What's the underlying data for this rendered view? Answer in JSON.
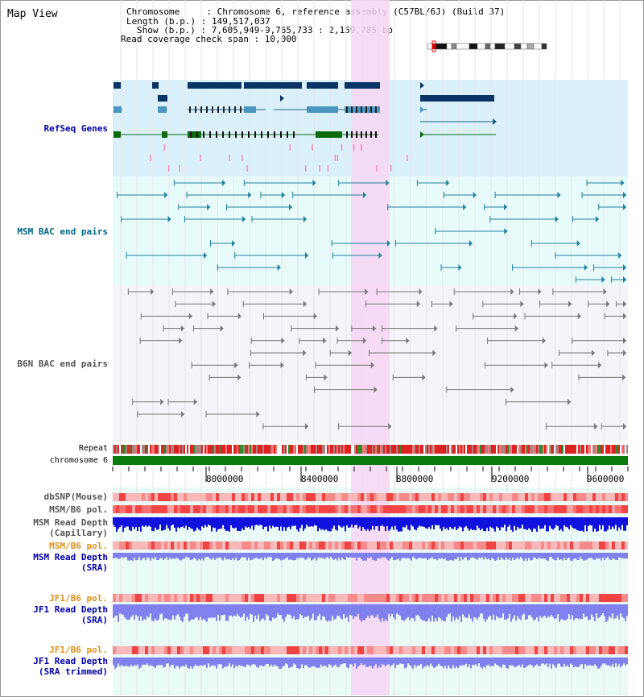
{
  "header": {
    "title": "Map View",
    "chromosome_line": "Chromosome     : Chromosome 6, reference assembly (C57BL/6J) (Build 37)",
    "length_line": "Length (b.p.) : 149,517,037",
    "show_line": "Show (b.p.) : 7,605,949-9,765,733 : 2,159,785 bp",
    "coverage_line": "Read coverage check span : 10,000"
  },
  "tracks": {
    "refseq": "RefSeq Genes",
    "msm_bac": "MSM BAC end pairs",
    "b6n_bac": "B6N BAC end pairs",
    "repeat": "Repeat",
    "chromosome": "chromosome 6",
    "dbsnp": "dbSNP(Mouse)",
    "msm_b6_pol_1": "MSM/B6 pol.",
    "msm_read_depth_cap_1": "MSM Read Depth",
    "msm_read_depth_cap_2": "(Capillary)",
    "msm_b6_pol_2": "MSM/B6 pol.",
    "msm_read_depth_sra_1": "MSM Read Depth",
    "msm_read_depth_sra_2": "(SRA)",
    "jf1_b6_pol_1": "JF1/B6 pol.",
    "jf1_read_depth_sra_1": "JF1 Read Depth",
    "jf1_read_depth_sra_2": "(SRA)",
    "jf1_b6_pol_2": "JF1/B6 pol.",
    "jf1_read_depth_trim_1": "JF1 Read Depth",
    "jf1_read_depth_trim_2": "(SRA trimmed)"
  },
  "axis": {
    "ticks": [
      "8000000",
      "8400000",
      "8800000",
      "9200000",
      "9600000"
    ]
  },
  "colors": {
    "highlight": "#f7d6f3",
    "refseq_bg": "#daf1fb",
    "msm_bg": "#e8fbfb",
    "b6n_bg": "#f4f4fa",
    "read_bg": "#eafaf7",
    "gene_dark": "#0a3366",
    "gene_mid": "#4a96c0",
    "gene_green": "#0b6b0b",
    "chromosome_green": "#0a7a0a",
    "msm_label": "#006688",
    "refseq_label": "#0000aa",
    "b6n_label": "#555555",
    "orange_label": "#e0901a",
    "depth_blue": "#1111dd",
    "depth_light": "#8080ee"
  }
}
